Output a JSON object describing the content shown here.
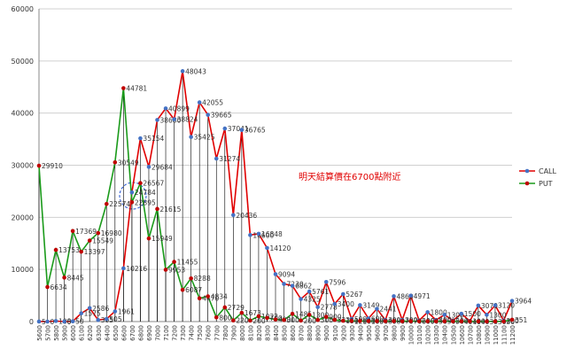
{
  "chart_data": {
    "type": "line",
    "annotation": "明天結算價在6700點附近",
    "categories": [
      "5600",
      "5700",
      "5800",
      "5900",
      "6000",
      "6100",
      "6200",
      "6300",
      "6400",
      "6500",
      "6600",
      "6700",
      "6800",
      "6900",
      "7000",
      "7100",
      "7200",
      "7300",
      "7400",
      "7500",
      "7600",
      "7700",
      "7800",
      "7900",
      "8000",
      "8100",
      "8200",
      "8300",
      "8400",
      "8500",
      "8600",
      "8700",
      "8800",
      "8900",
      "9000",
      "9100",
      "9200",
      "9300",
      "9400",
      "9500",
      "9600",
      "9700",
      "9800",
      "9900",
      "10000",
      "10100",
      "10200",
      "10300",
      "10400",
      "10500",
      "10600",
      "10700",
      "10800",
      "10900",
      "11000",
      "11100",
      "11200"
    ],
    "series": [
      {
        "name": "CALL",
        "color": "#e00000",
        "marker": "#4472c4",
        "values": [
          5,
          0,
          108,
          0,
          50,
          1575,
          2586,
          305,
          505,
          1961,
          10216,
          24784,
          35154,
          29684,
          38680,
          40899,
          38824,
          48043,
          35425,
          42055,
          39665,
          31274,
          37041,
          20436,
          36765,
          16600,
          16848,
          14120,
          9094,
          7230,
          6862,
          4325,
          5761,
          2778,
          7596,
          3400,
          5267,
          500,
          3149,
          600,
          2441,
          300,
          4860,
          300,
          4971,
          200,
          1800,
          300,
          1300,
          200,
          1500,
          100,
          3070,
          1300,
          3120,
          200,
          3964
        ]
      },
      {
        "name": "PUT",
        "color": "#1a9a1a",
        "marker": "#c00000",
        "values": [
          29910,
          6634,
          13753,
          8445,
          17369,
          13397,
          15549,
          16980,
          22574,
          30549,
          44781,
          22895,
          26567,
          15949,
          21615,
          9953,
          11455,
          6087,
          8288,
          4470,
          4834,
          800,
          2729,
          220,
          1673,
          200,
          1022,
          700,
          400,
          300,
          1485,
          200,
          1300,
          300,
          900,
          322,
          150,
          120,
          100,
          100,
          90,
          80,
          80,
          70,
          70,
          60,
          60,
          50,
          50,
          50,
          40,
          40,
          40,
          30,
          30,
          30,
          351
        ]
      }
    ],
    "ylim": [
      0,
      60000
    ],
    "yticks": [
      0,
      10000,
      20000,
      30000,
      40000,
      50000,
      60000
    ],
    "grid": true,
    "legend": "right"
  }
}
